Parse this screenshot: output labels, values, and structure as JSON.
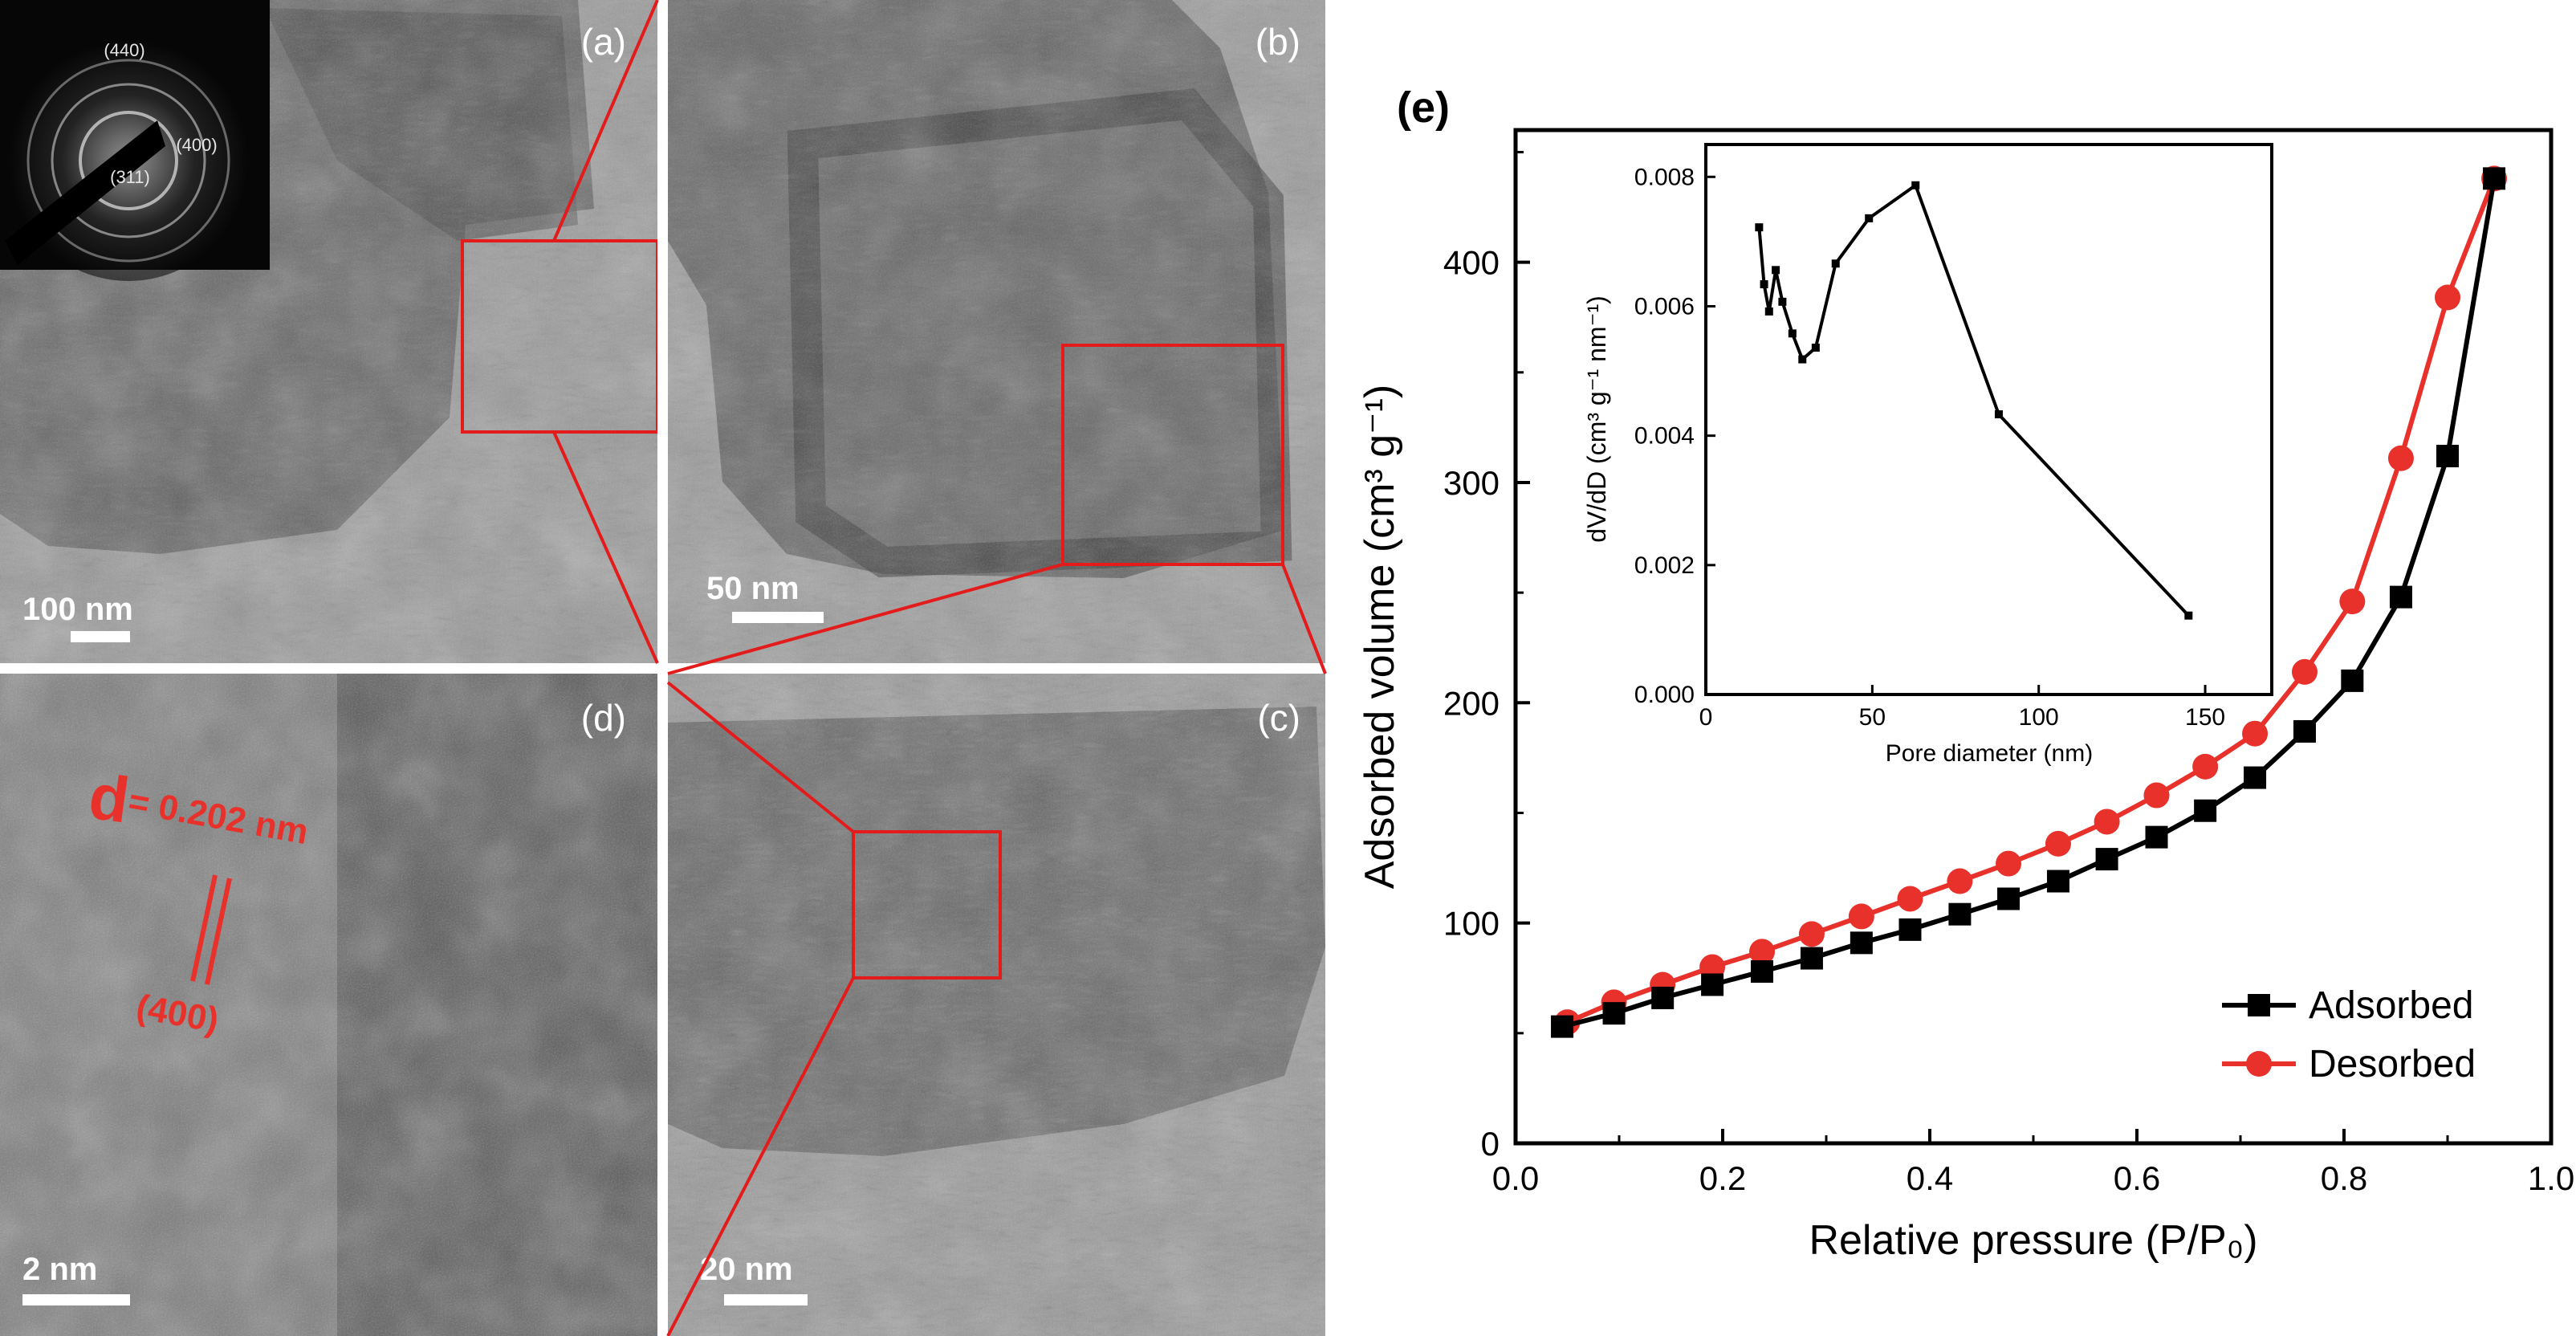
{
  "figure": {
    "panels": [
      {
        "id": "a",
        "label": "(a)",
        "scale_bar": "100 nm"
      },
      {
        "id": "b",
        "label": "(b)",
        "scale_bar": "50 nm"
      },
      {
        "id": "c",
        "label": "(c)",
        "scale_bar": "20 nm"
      },
      {
        "id": "d",
        "label": "(d)",
        "scale_bar": "2 nm"
      }
    ],
    "saed_inset": {
      "ring_labels": [
        "(440)",
        "(400)",
        "(311)"
      ]
    },
    "lattice_annotation": {
      "d_symbol": "d",
      "d_value": "= 0.202 nm",
      "plane": "(400)"
    },
    "chart_label": "(e)"
  },
  "colors": {
    "adsorbed": "#000000",
    "desorbed": "#e8312b",
    "zoom_box": "#e31b1b",
    "tem_background": "#8e8e8e"
  },
  "chart_data": [
    {
      "type": "line",
      "xlabel": "Relative pressure (P/P₀)",
      "ylabel": "Adsorbed volume (cm³ g⁻¹)",
      "xlim": [
        0.0,
        1.0
      ],
      "ylim": [
        0,
        460
      ],
      "xticks": [
        "0.0",
        "0.2",
        "0.4",
        "0.6",
        "0.8",
        "1.0"
      ],
      "yticks": [
        "0",
        "100",
        "200",
        "300",
        "400"
      ],
      "legend_position": "bottom-right",
      "series": [
        {
          "name": "Adsorbed",
          "marker": "square",
          "x": [
            0.045,
            0.095,
            0.142,
            0.19,
            0.238,
            0.286,
            0.334,
            0.381,
            0.429,
            0.476,
            0.524,
            0.571,
            0.619,
            0.666,
            0.714,
            0.762,
            0.808,
            0.855,
            0.9,
            0.945
          ],
          "y": [
            53,
            59,
            66,
            72,
            78,
            84,
            91,
            97,
            104,
            111,
            119,
            129,
            139,
            151,
            166,
            187,
            210,
            248,
            312,
            438
          ]
        },
        {
          "name": "Desorbed",
          "marker": "circle",
          "x": [
            0.05,
            0.095,
            0.142,
            0.19,
            0.238,
            0.286,
            0.334,
            0.381,
            0.429,
            0.476,
            0.524,
            0.571,
            0.619,
            0.666,
            0.714,
            0.762,
            0.808,
            0.855,
            0.9,
            0.945
          ],
          "y": [
            55,
            64,
            72,
            80,
            87,
            95,
            103,
            111,
            119,
            127,
            136,
            146,
            158,
            171,
            186,
            214,
            246,
            311,
            384,
            438
          ]
        }
      ]
    },
    {
      "type": "line",
      "xlabel": "Pore diameter (nm)",
      "ylabel": "dV/dD (cm³ g⁻¹ nm⁻¹)",
      "xlim": [
        0,
        170
      ],
      "ylim": [
        0,
        0.0085
      ],
      "xticks": [
        "0",
        "50",
        "100",
        "150"
      ],
      "yticks": [
        "0.000",
        "0.002",
        "0.004",
        "0.006",
        "0.008"
      ],
      "series": [
        {
          "x": [
            16,
            17.5,
            19,
            21,
            23,
            26,
            29,
            33,
            39,
            49,
            63,
            88,
            145
          ],
          "y": [
            0.00722,
            0.00634,
            0.00592,
            0.00656,
            0.00607,
            0.00558,
            0.00518,
            0.00536,
            0.00666,
            0.00736,
            0.00787,
            0.00433,
            0.00122
          ]
        }
      ]
    }
  ]
}
